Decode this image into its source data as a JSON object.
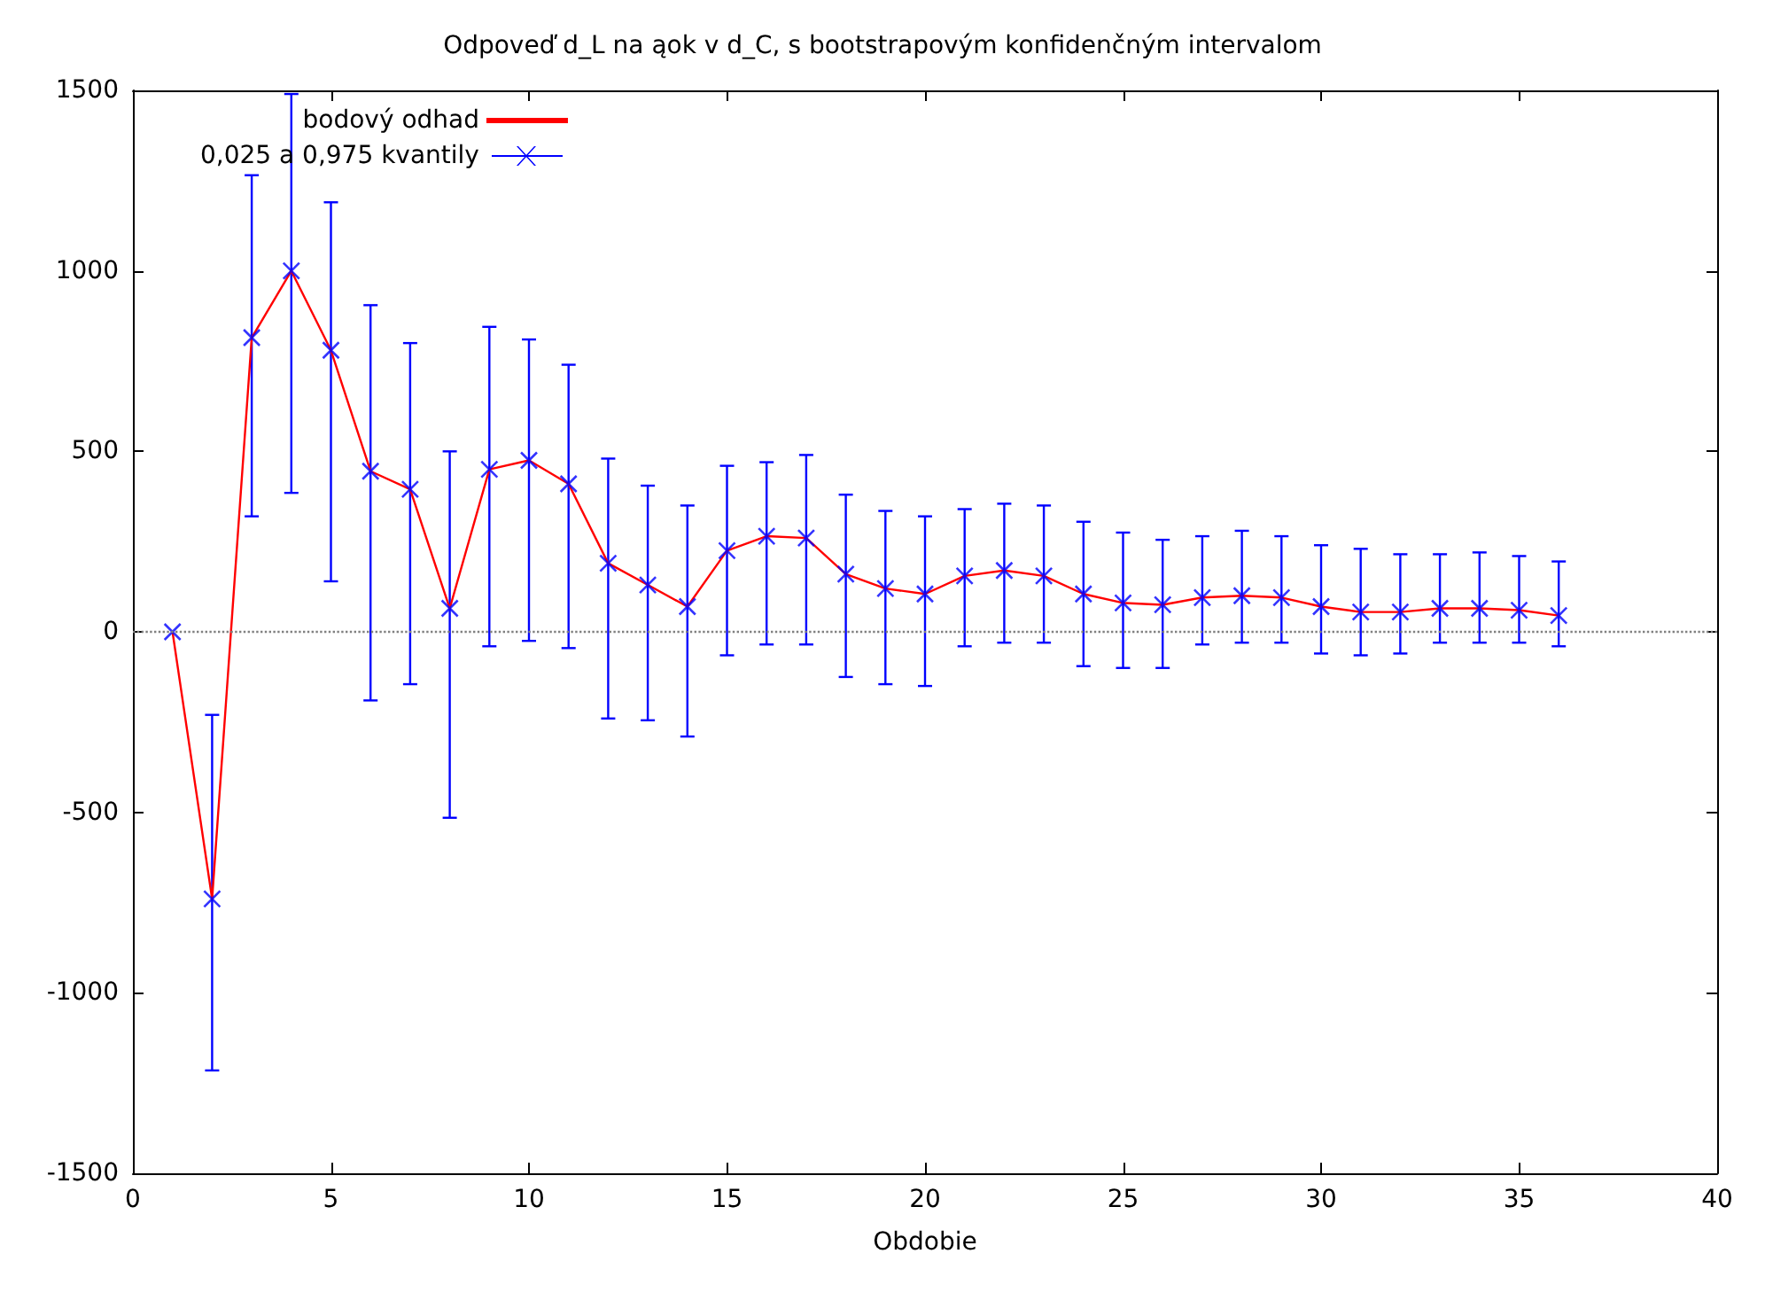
{
  "chart_data": {
    "type": "line",
    "title": "Odpoveď d_L na ąok v d_C, s bootstrapovým konfidenčným intervalom",
    "xlabel": "Obdobie",
    "x": [
      1,
      2,
      3,
      4,
      5,
      6,
      7,
      8,
      9,
      10,
      11,
      12,
      13,
      14,
      15,
      16,
      17,
      18,
      19,
      20,
      21,
      22,
      23,
      24,
      25,
      26,
      27,
      28,
      29,
      30,
      31,
      32,
      33,
      34,
      35,
      36
    ],
    "series": [
      {
        "name": "bodový odhad",
        "color": "#ff0000",
        "values": [
          0,
          -740,
          815,
          1000,
          780,
          445,
          395,
          65,
          450,
          475,
          410,
          190,
          130,
          70,
          225,
          265,
          260,
          160,
          120,
          105,
          155,
          170,
          155,
          105,
          80,
          75,
          95,
          100,
          95,
          70,
          55,
          55,
          65,
          65,
          60,
          45
        ]
      },
      {
        "name": "0,025 a 0,975 kvantily",
        "color": "#0000ff",
        "type": "scatter",
        "marker": "cross",
        "values": [
          0,
          -740,
          815,
          1000,
          780,
          445,
          395,
          65,
          450,
          475,
          410,
          190,
          130,
          70,
          225,
          265,
          260,
          160,
          120,
          105,
          155,
          170,
          155,
          105,
          80,
          75,
          95,
          100,
          95,
          70,
          55,
          55,
          65,
          65,
          60,
          45
        ],
        "errors": [
          null,
          [
            -1215,
            -230
          ],
          [
            320,
            1265
          ],
          [
            385,
            1490
          ],
          [
            140,
            1190
          ],
          [
            -190,
            905
          ],
          [
            -145,
            800
          ],
          [
            -515,
            500
          ],
          [
            -40,
            845
          ],
          [
            -25,
            810
          ],
          [
            -45,
            740
          ],
          [
            -240,
            480
          ],
          [
            -245,
            405
          ],
          [
            -290,
            350
          ],
          [
            -65,
            460
          ],
          [
            -35,
            470
          ],
          [
            -35,
            490
          ],
          [
            -125,
            380
          ],
          [
            -145,
            335
          ],
          [
            -150,
            320
          ],
          [
            -40,
            340
          ],
          [
            -30,
            355
          ],
          [
            -30,
            350
          ],
          [
            -95,
            305
          ],
          [
            -100,
            275
          ],
          [
            -100,
            255
          ],
          [
            -35,
            265
          ],
          [
            -30,
            280
          ],
          [
            -30,
            265
          ],
          [
            -60,
            240
          ],
          [
            -65,
            230
          ],
          [
            -60,
            215
          ],
          [
            -30,
            215
          ],
          [
            -30,
            220
          ],
          [
            -30,
            210
          ],
          [
            -40,
            195
          ]
        ]
      }
    ],
    "xlim": [
      0,
      40
    ],
    "xticks": [
      0,
      5,
      10,
      15,
      20,
      25,
      30,
      35,
      40
    ],
    "ylim": [
      -1500,
      1500
    ],
    "yticks": [
      -1500,
      -1000,
      -500,
      0,
      500,
      1000,
      1500
    ],
    "ref_lines": [
      {
        "axis": "y",
        "value": 0,
        "color": "#808080",
        "line_style": "dotted"
      }
    ],
    "grid": false,
    "legend": "top left"
  }
}
